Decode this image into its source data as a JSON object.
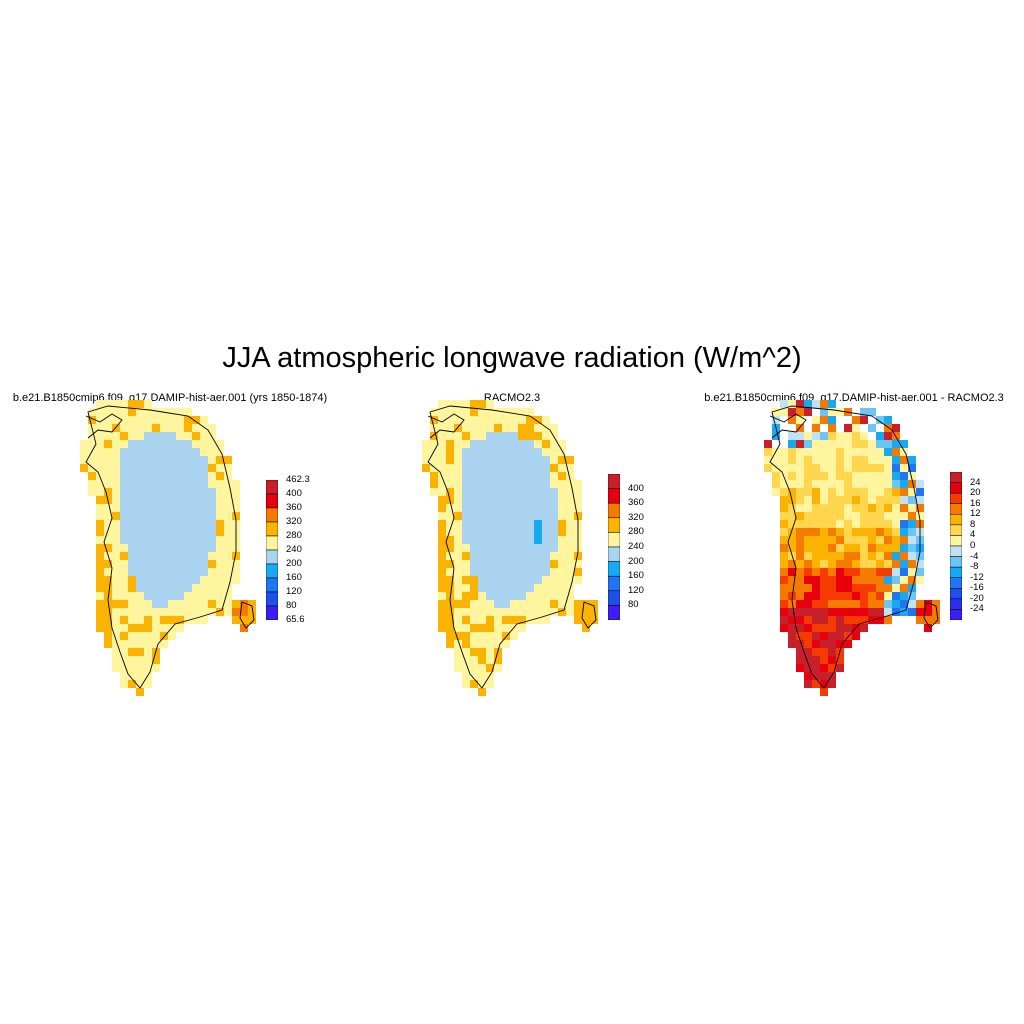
{
  "figure": {
    "title": "JJA atmospheric longwave radiation (W/m^2)"
  },
  "panels": [
    {
      "title": "b.e21.B1850cmip6.f09_g17.DAMIP-hist-aer.001 (yrs 1850-1874)",
      "colorbar": {
        "labels": [
          "462.3",
          "400",
          "360",
          "320",
          "280",
          "240",
          "200",
          "160",
          "120",
          "80",
          "65.6"
        ],
        "colors": [
          "#c8202a",
          "#e8000e",
          "#f57a00",
          "#f9b300",
          "#fff59e",
          "#a9d3ee",
          "#18a9f3",
          "#2076f2",
          "#1f4fe8",
          "#3a1ef5"
        ]
      }
    },
    {
      "title": "RACMO2.3",
      "colorbar": {
        "labels": [
          "400",
          "360",
          "320",
          "280",
          "240",
          "200",
          "160",
          "120",
          "80"
        ],
        "colors": [
          "#c8202a",
          "#e8000e",
          "#f57a00",
          "#f9b300",
          "#fff59e",
          "#a9d3ee",
          "#18a9f3",
          "#2076f2",
          "#1f4fe8",
          "#3a1ef5"
        ]
      }
    },
    {
      "title": "b.e21.B1850cmip6.f09_g17.DAMIP-hist-aer.001 - RACMO2.3",
      "colorbar": {
        "labels": [
          "24",
          "20",
          "16",
          "12",
          "8",
          "4",
          "0",
          "-4",
          "-8",
          "-12",
          "-16",
          "-20",
          "-24"
        ],
        "colors": [
          "#c8202a",
          "#e8000e",
          "#f53b00",
          "#f57a00",
          "#f9b300",
          "#ffd64d",
          "#fff59e",
          "#bfe3f5",
          "#6cc5f5",
          "#18a9f3",
          "#2076f2",
          "#1f4fe8",
          "#2a2ef0",
          "#3a1ef5"
        ]
      }
    }
  ]
}
